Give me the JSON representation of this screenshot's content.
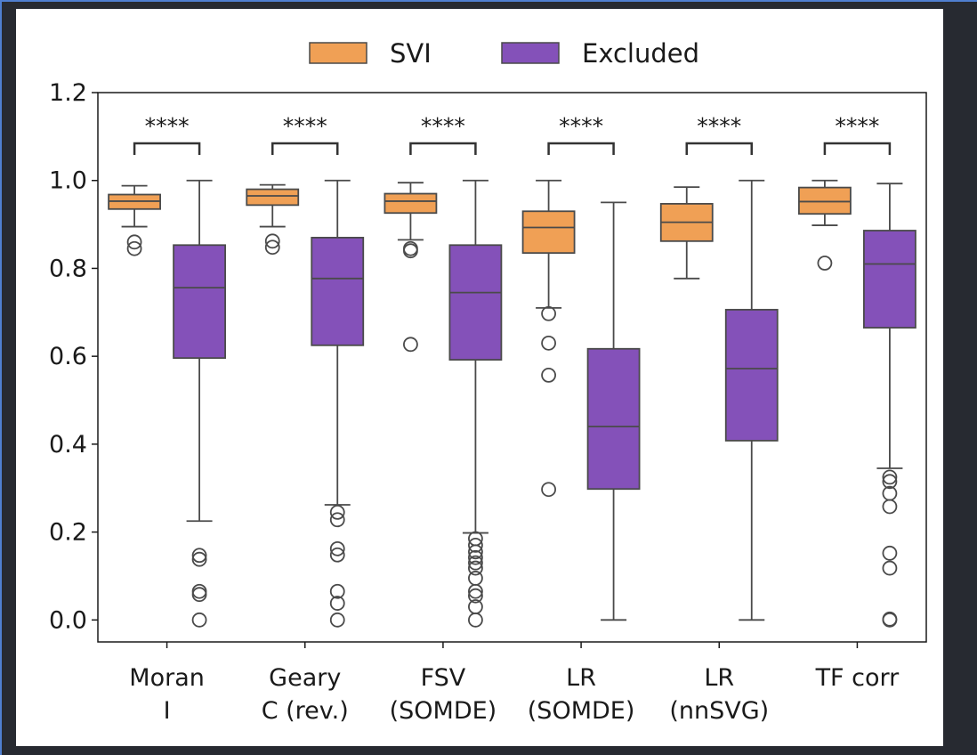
{
  "colors": {
    "background": "#272a31",
    "accent_border": "#4f7fd0",
    "svi": "#f0a055",
    "excluded": "#8451b9",
    "box_edge": "#4a4a4a"
  },
  "chart_data": {
    "type": "box",
    "title": "",
    "xlabel": "",
    "ylabel": "",
    "ylim": [
      -0.05,
      1.2
    ],
    "yticks": [
      "0.0",
      "0.2",
      "0.4",
      "0.6",
      "0.8",
      "1.0",
      "1.2"
    ],
    "grid": false,
    "legend": {
      "placement": "top-center",
      "entries": [
        "SVI",
        "Excluded"
      ]
    },
    "categories": [
      {
        "line1": "Moran",
        "line2": "I",
        "annotation": "****",
        "svi": {
          "whislo": 0.895,
          "q1": 0.935,
          "med": 0.953,
          "q3": 0.968,
          "whishi": 0.988,
          "fliers": [
            0.845,
            0.86
          ]
        },
        "excluded": {
          "whislo": 0.225,
          "q1": 0.596,
          "med": 0.756,
          "q3": 0.853,
          "whishi": 1.0,
          "fliers": [
            0.0,
            0.058,
            0.065,
            0.138,
            0.147
          ]
        }
      },
      {
        "line1": "Geary",
        "line2": "C (rev.)",
        "annotation": "****",
        "svi": {
          "whislo": 0.895,
          "q1": 0.944,
          "med": 0.965,
          "q3": 0.98,
          "whishi": 0.99,
          "fliers": [
            0.848,
            0.862
          ]
        },
        "excluded": {
          "whislo": 0.262,
          "q1": 0.625,
          "med": 0.777,
          "q3": 0.87,
          "whishi": 1.0,
          "fliers": [
            0.0,
            0.038,
            0.065,
            0.148,
            0.162,
            0.228,
            0.245
          ]
        }
      },
      {
        "line1": "FSV",
        "line2": "(SOMDE)",
        "annotation": "****",
        "svi": {
          "whislo": 0.865,
          "q1": 0.926,
          "med": 0.953,
          "q3": 0.97,
          "whishi": 0.995,
          "fliers": [
            0.627,
            0.84,
            0.845
          ]
        },
        "excluded": {
          "whislo": 0.198,
          "q1": 0.592,
          "med": 0.745,
          "q3": 0.853,
          "whishi": 1.0,
          "fliers": [
            0.0,
            0.03,
            0.055,
            0.065,
            0.095,
            0.118,
            0.13,
            0.142,
            0.155,
            0.17,
            0.185
          ]
        }
      },
      {
        "line1": "LR",
        "line2": "(SOMDE)",
        "annotation": "****",
        "svi": {
          "whislo": 0.71,
          "q1": 0.835,
          "med": 0.893,
          "q3": 0.93,
          "whishi": 1.0,
          "fliers": [
            0.297,
            0.557,
            0.63,
            0.697
          ]
        },
        "excluded": {
          "whislo": 0.0,
          "q1": 0.298,
          "med": 0.44,
          "q3": 0.617,
          "whishi": 0.95,
          "fliers": []
        }
      },
      {
        "line1": "LR",
        "line2": "(nnSVG)",
        "annotation": "****",
        "svi": {
          "whislo": 0.777,
          "q1": 0.862,
          "med": 0.905,
          "q3": 0.947,
          "whishi": 0.985,
          "fliers": []
        },
        "excluded": {
          "whislo": 0.0,
          "q1": 0.408,
          "med": 0.572,
          "q3": 0.706,
          "whishi": 1.0,
          "fliers": []
        }
      },
      {
        "line1": "TF corr",
        "line2": "",
        "annotation": "****",
        "svi": {
          "whislo": 0.898,
          "q1": 0.924,
          "med": 0.952,
          "q3": 0.984,
          "whishi": 1.0,
          "fliers": [
            0.812
          ]
        },
        "excluded": {
          "whislo": 0.345,
          "q1": 0.665,
          "med": 0.81,
          "q3": 0.886,
          "whishi": 0.993,
          "fliers": [
            0.0,
            0.002,
            0.118,
            0.152,
            0.258,
            0.288,
            0.315,
            0.325
          ]
        }
      }
    ]
  }
}
